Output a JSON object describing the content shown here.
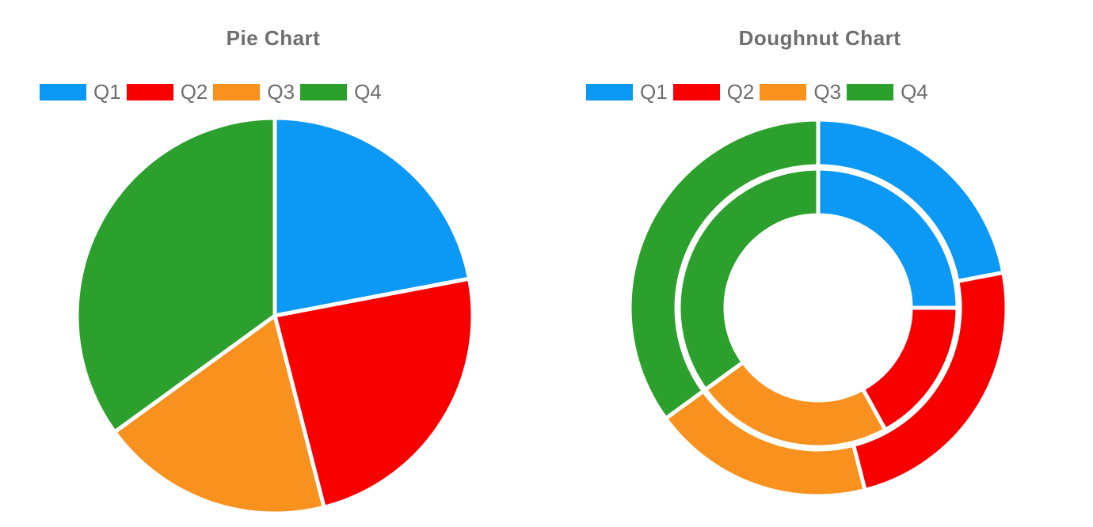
{
  "styles": {
    "background": "#FFFFFF",
    "title_color": "#6E6E6E",
    "legend_text_color": "#6E6E6E"
  },
  "chart_data": [
    {
      "type": "pie",
      "title": "Pie Chart",
      "categories": [
        "Q1",
        "Q2",
        "Q3",
        "Q4"
      ],
      "values": [
        22,
        24,
        19,
        35
      ],
      "colors": [
        "#0C99F5",
        "#F90000",
        "#F8911D",
        "#2CA02C"
      ],
      "border_color": "#FFFFFF",
      "legend_position": "top",
      "start_angle_deg": 0,
      "direction": "clockwise"
    },
    {
      "type": "doughnut",
      "title": "Doughnut Chart",
      "categories": [
        "Q1",
        "Q2",
        "Q3",
        "Q4"
      ],
      "series": [
        {
          "name": "outer ring",
          "values": [
            22,
            24,
            19,
            35
          ]
        },
        {
          "name": "inner ring",
          "values": [
            25,
            17,
            23,
            35
          ]
        }
      ],
      "colors": [
        "#0C99F5",
        "#F90000",
        "#F8911D",
        "#2CA02C"
      ],
      "border_color": "#FFFFFF",
      "legend_position": "top",
      "start_angle_deg": 0,
      "direction": "clockwise"
    }
  ]
}
